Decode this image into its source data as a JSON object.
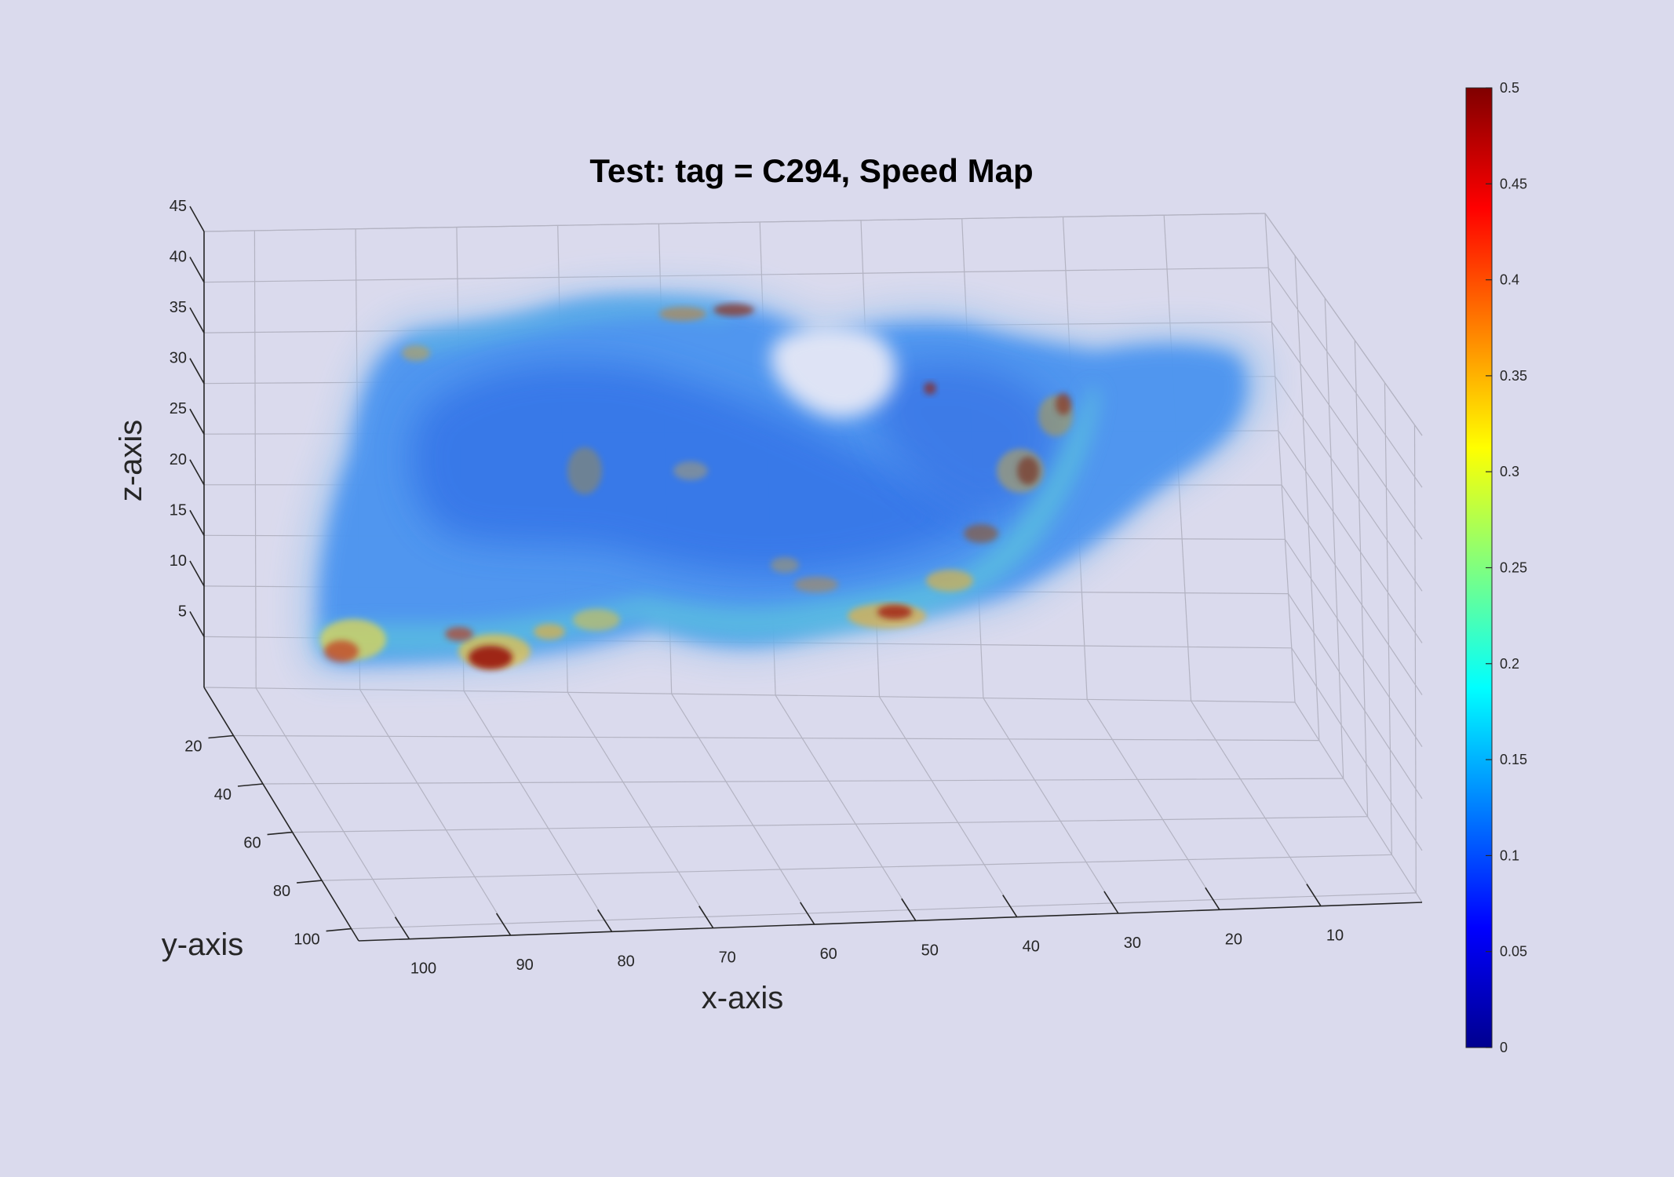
{
  "figure": {
    "background": "#dadaed"
  },
  "chart_data": {
    "type": "heatmap",
    "subtype": "3d-volume-render",
    "title": "Test: tag = C294, Speed Map",
    "xlabel": "x-axis",
    "ylabel": "y-axis",
    "zlabel": "z-axis",
    "x_ticks": [
      "100",
      "90",
      "80",
      "70",
      "60",
      "50",
      "40",
      "30",
      "20",
      "10"
    ],
    "y_ticks": [
      "20",
      "40",
      "60",
      "80",
      "100"
    ],
    "z_ticks": [
      "5",
      "10",
      "15",
      "20",
      "25",
      "30",
      "35",
      "40",
      "45"
    ],
    "xlim": [
      0,
      105
    ],
    "ylim": [
      0,
      105
    ],
    "zlim": [
      0,
      45
    ],
    "grid": true,
    "colormap": "jet",
    "colorbar": {
      "location": "right",
      "clim": [
        0,
        0.5
      ],
      "ticks": [
        "0",
        "0.05",
        "0.1",
        "0.15",
        "0.2",
        "0.25",
        "0.3",
        "0.35",
        "0.4",
        "0.45",
        "0.5"
      ]
    },
    "dominant_value_range": [
      0.1,
      0.2
    ],
    "hotspot_value_range": [
      0.3,
      0.5
    ]
  }
}
